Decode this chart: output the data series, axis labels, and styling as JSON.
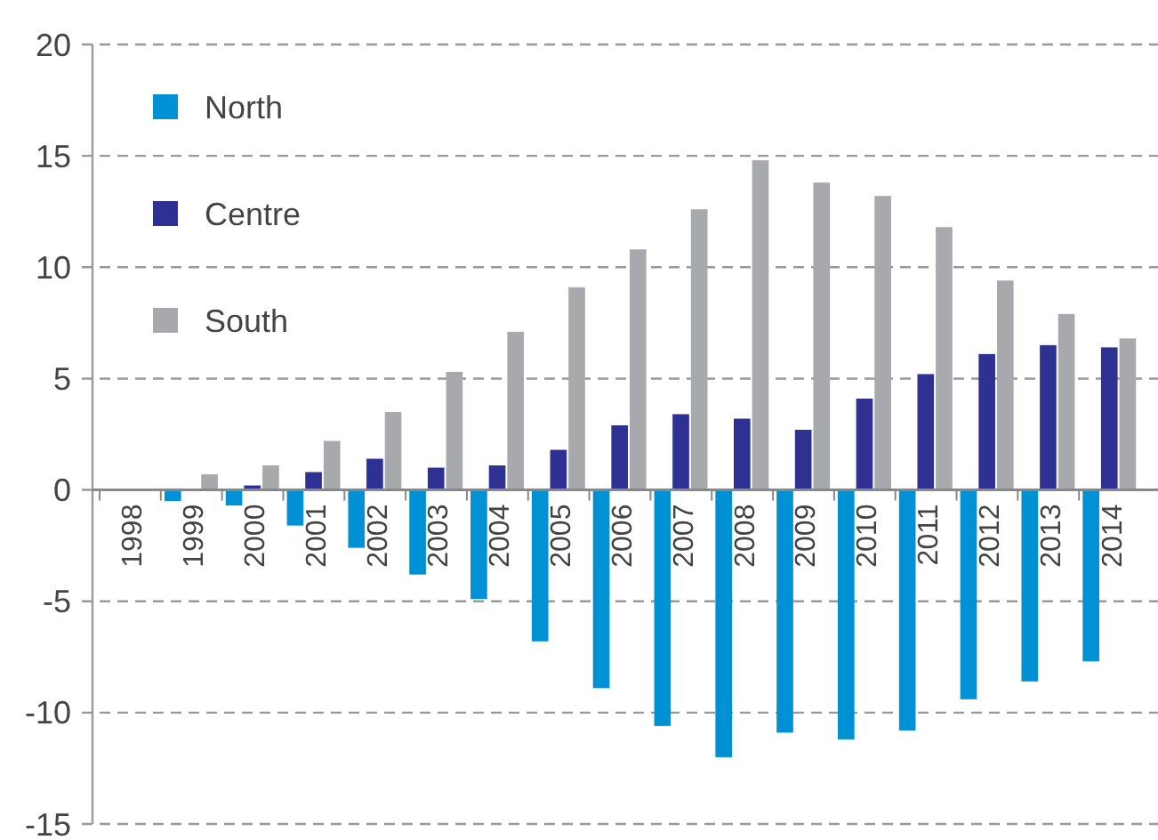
{
  "chart_data": {
    "type": "bar",
    "categories": [
      "1998",
      "1999",
      "2000",
      "2001",
      "2002",
      "2003",
      "2004",
      "2005",
      "2006",
      "2007",
      "2008",
      "2009",
      "2010",
      "2011",
      "2012",
      "2013",
      "2014"
    ],
    "series": [
      {
        "name": "North",
        "color": "#0090d4",
        "values": [
          0,
          -0.5,
          -0.7,
          -1.6,
          -2.6,
          -3.8,
          -4.9,
          -6.8,
          -8.9,
          -10.6,
          -12.0,
          -10.9,
          -11.2,
          -10.8,
          -9.4,
          -8.6,
          -7.7
        ]
      },
      {
        "name": "Centre",
        "color": "#2e3192",
        "values": [
          0,
          0,
          0.2,
          0.8,
          1.4,
          1.0,
          1.1,
          1.8,
          2.9,
          3.4,
          3.2,
          2.7,
          4.1,
          5.2,
          6.1,
          6.5,
          6.4
        ]
      },
      {
        "name": "South",
        "color": "#a7a9ac",
        "values": [
          0,
          0.7,
          1.1,
          2.2,
          3.5,
          5.3,
          7.1,
          9.1,
          10.8,
          12.6,
          14.8,
          13.8,
          13.2,
          11.8,
          9.4,
          7.9,
          6.8
        ]
      }
    ],
    "ylim": [
      -15,
      20
    ],
    "yticks": [
      -15,
      -10,
      -5,
      0,
      5,
      10,
      15,
      20
    ],
    "grid": "y",
    "legend": "top left"
  }
}
